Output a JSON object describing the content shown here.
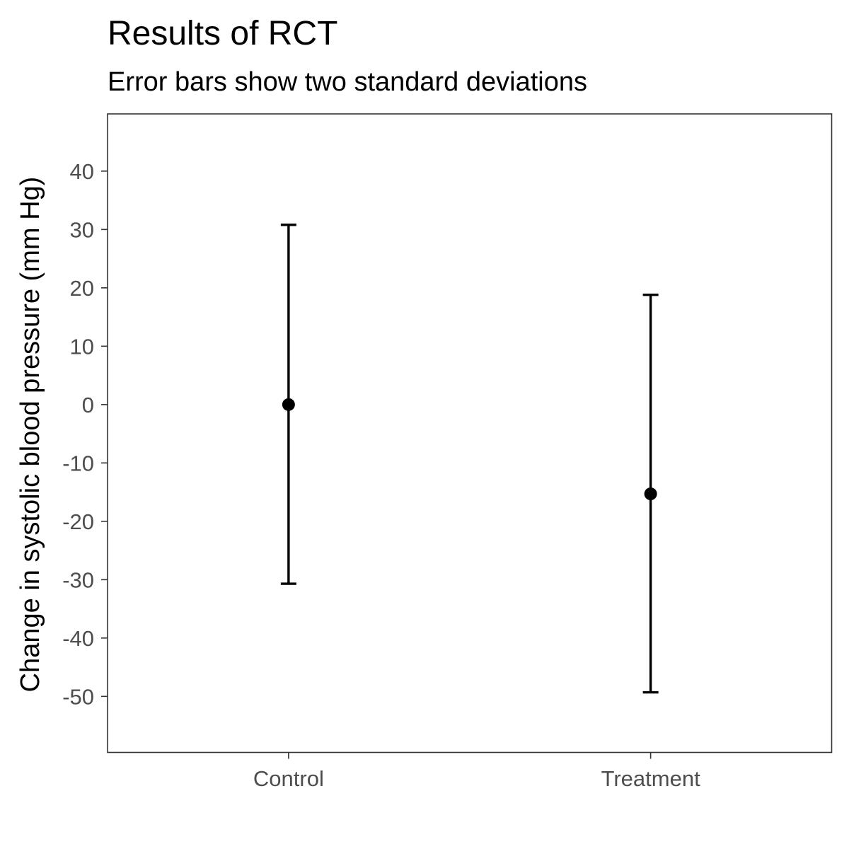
{
  "chart_data": {
    "type": "scatter",
    "title": "Results of RCT",
    "subtitle": "Error bars show two standard deviations",
    "xlabel": "",
    "ylabel": "Change in systolic blood pressure (mm Hg)",
    "categories": [
      "Control",
      "Treatment"
    ],
    "points": [
      {
        "category": "Control",
        "mean": 0,
        "lower": -30.7,
        "upper": 30.8
      },
      {
        "category": "Treatment",
        "mean": -15.3,
        "lower": -49.3,
        "upper": 18.8
      }
    ],
    "y_ticks": [
      40,
      30,
      20,
      10,
      0,
      -10,
      -20,
      -30,
      -40,
      -50
    ],
    "ylim": [
      -59.6,
      49.8
    ],
    "grid": false,
    "legend": "none",
    "colors": {
      "mark": "#000000",
      "tick_label": "#4d4d4d",
      "axis": "#333333",
      "panel_border": "#333333"
    }
  }
}
